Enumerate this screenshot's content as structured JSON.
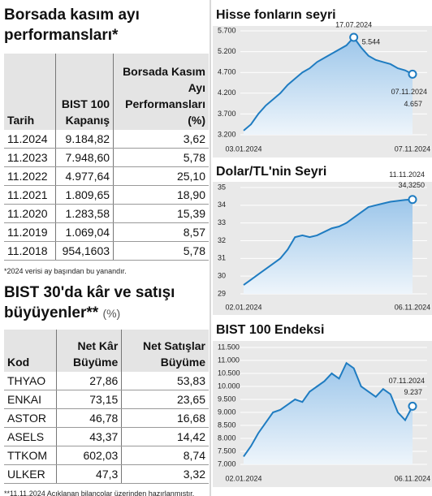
{
  "tables": [
    {
      "title": "Borsada kasım ayı performansları*",
      "columns": [
        "Tarih",
        "BIST 100 Kapanış",
        "Borsada Kasım Ayı Performansları (%)"
      ],
      "rows": [
        [
          "11.2024",
          "9.184,82",
          "3,62"
        ],
        [
          "11.2023",
          "7.948,60",
          "5,78"
        ],
        [
          "11.2022",
          "4.977,64",
          "25,10"
        ],
        [
          "11.2021",
          "1.809,65",
          "18,90"
        ],
        [
          "11.2020",
          "1.283,58",
          "15,39"
        ],
        [
          "11.2019",
          "1.069,04",
          "8,57"
        ],
        [
          "11.2018",
          "954,1603",
          "5,78"
        ]
      ],
      "note": "*2024 verisi ay başından bu yanandır."
    },
    {
      "title": "BIST 30'da kâr ve satışı büyüyenler**",
      "unit": "(%)",
      "columns": [
        "Kod",
        "Net Kâr Büyüme",
        "Net Satışlar Büyüme"
      ],
      "rows": [
        [
          "THYAO",
          "27,86",
          "53,83"
        ],
        [
          "ENKAI",
          "73,15",
          "23,65"
        ],
        [
          "ASTOR",
          "46,78",
          "16,68"
        ],
        [
          "ASELS",
          "43,37",
          "14,42"
        ],
        [
          "TTKOM",
          "602,03",
          "8,74"
        ],
        [
          "ULKER",
          "47,3",
          "3,32"
        ]
      ],
      "note": "**11.11.2024 Açıklanan bilançolar üzerinden hazırlanmıştır."
    }
  ],
  "chart_data": [
    {
      "type": "line",
      "title": "Hisse fonların seyri",
      "color": "#1f7cc1",
      "grid": true,
      "categories": [
        "03.01.2024",
        null,
        null,
        null,
        null,
        null,
        null,
        null,
        null,
        null,
        null,
        null,
        null,
        null,
        null,
        null,
        null,
        null,
        null,
        null,
        null,
        null,
        null,
        "07.11.2024"
      ],
      "values": [
        3300,
        3450,
        3700,
        3900,
        4050,
        4200,
        4400,
        4550,
        4700,
        4800,
        4950,
        5050,
        5150,
        5250,
        5350,
        5544,
        5300,
        5100,
        5000,
        4950,
        4900,
        4800,
        4750,
        4657
      ],
      "ylim": [
        3200,
        5700
      ],
      "yticks": [
        {
          "value": 3200,
          "label": "3.200"
        },
        {
          "value": 3700,
          "label": "3.700"
        },
        {
          "value": 4200,
          "label": "4.200"
        },
        {
          "value": 4700,
          "label": "4.700"
        },
        {
          "value": 5200,
          "label": "5.200"
        },
        {
          "value": 5700,
          "label": "5.700"
        }
      ],
      "annotations": [
        [
          "17.07.2024",
          "5.544"
        ],
        [
          "07.11.2024",
          "4.657"
        ]
      ]
    },
    {
      "type": "line",
      "title": "Dolar/TL'nin Seyri",
      "color": "#1f7cc1",
      "grid": true,
      "categories": [
        "02.01.2024",
        null,
        null,
        null,
        null,
        null,
        null,
        null,
        null,
        null,
        null,
        null,
        null,
        null,
        null,
        null,
        null,
        null,
        null,
        null,
        null,
        null,
        null,
        "06.11.2024"
      ],
      "values": [
        29.5,
        29.8,
        30.1,
        30.4,
        30.7,
        31.0,
        31.5,
        32.2,
        32.3,
        32.2,
        32.3,
        32.5,
        32.7,
        32.8,
        33.0,
        33.3,
        33.6,
        33.9,
        34.0,
        34.1,
        34.2,
        34.25,
        34.3,
        34.325
      ],
      "ylim": [
        29,
        35
      ],
      "yticks": [
        29,
        30,
        31,
        32,
        33,
        34,
        35
      ],
      "annotations": [
        [
          "11.11.2024",
          "34,3250"
        ]
      ]
    },
    {
      "type": "line",
      "title": "BIST 100 Endeksi",
      "color": "#1f7cc1",
      "grid": true,
      "categories": [
        "02.01.2024",
        null,
        null,
        null,
        null,
        null,
        null,
        null,
        null,
        null,
        null,
        null,
        null,
        null,
        null,
        null,
        null,
        null,
        null,
        null,
        null,
        null,
        null,
        "06.11.2024"
      ],
      "values": [
        7300,
        7700,
        8200,
        8600,
        9000,
        9100,
        9300,
        9500,
        9400,
        9800,
        10000,
        10200,
        10500,
        10300,
        10900,
        10700,
        10000,
        9800,
        9600,
        9900,
        9700,
        9000,
        8700,
        9237
      ],
      "ylim": [
        7000,
        11500
      ],
      "yticks": [
        {
          "value": 7000,
          "label": "7.000"
        },
        {
          "value": 7500,
          "label": "7.500"
        },
        {
          "value": 8000,
          "label": "8.000"
        },
        {
          "value": 8500,
          "label": "8.500"
        },
        {
          "value": 9000,
          "label": "9.000"
        },
        {
          "value": 9500,
          "label": "9.500"
        },
        {
          "value": 10000,
          "label": "10.000"
        },
        {
          "value": 10500,
          "label": "10.500"
        },
        {
          "value": 11000,
          "label": "11.000"
        },
        {
          "value": 11500,
          "label": "11.500"
        }
      ],
      "annotations": [
        [
          "07.11.2024",
          "9.237"
        ]
      ]
    }
  ]
}
